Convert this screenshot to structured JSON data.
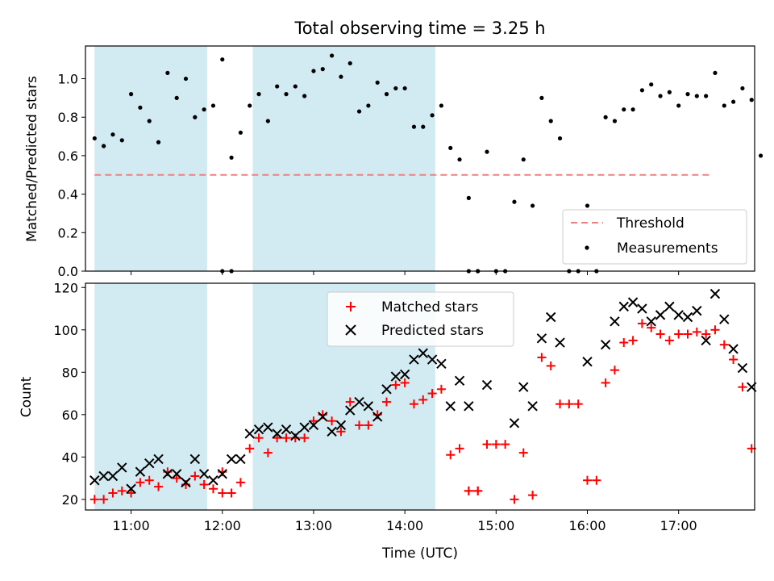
{
  "figure": {
    "title": "Total observing time = 3.25 h"
  },
  "chart_data": [
    {
      "type": "scatter",
      "panel": "top",
      "ylabel": "Matched/Predicted stars",
      "ylim": [
        0,
        1.17
      ],
      "yticks": [
        0.0,
        0.2,
        0.4,
        0.6,
        0.8,
        1.0
      ],
      "ytick_labels": [
        "0.0",
        "0.2",
        "0.4",
        "0.6",
        "0.8",
        "1.0"
      ],
      "xlim": [
        "10:30",
        "17:50"
      ],
      "grid": false,
      "legend_position": "lower-right",
      "shaded_intervals": [
        [
          "10:36",
          "11:50"
        ],
        [
          "12:20",
          "14:20"
        ]
      ],
      "shade_color": "#add8e6",
      "threshold": {
        "name": "Threshold",
        "value": 0.5,
        "x_range": [
          "10:36",
          "17:20"
        ],
        "color": "#f08080"
      },
      "series": [
        {
          "name": "Measurements",
          "color": "#000000",
          "points": [
            [
              "10:36",
              0.69
            ],
            [
              "10:42",
              0.65
            ],
            [
              "10:48",
              0.71
            ],
            [
              "10:54",
              0.68
            ],
            [
              "11:00",
              0.92
            ],
            [
              "11:06",
              0.85
            ],
            [
              "11:12",
              0.78
            ],
            [
              "11:18",
              0.67
            ],
            [
              "11:24",
              1.03
            ],
            [
              "11:30",
              0.9
            ],
            [
              "11:36",
              1.0
            ],
            [
              "11:42",
              0.8
            ],
            [
              "11:48",
              0.84
            ],
            [
              "11:54",
              0.86
            ],
            [
              "12:00",
              1.1
            ],
            [
              "12:06",
              0.59
            ],
            [
              "12:00",
              0.0
            ],
            [
              "12:06",
              0.0
            ],
            [
              "12:12",
              0.72
            ],
            [
              "12:18",
              0.86
            ],
            [
              "12:24",
              0.92
            ],
            [
              "12:30",
              0.78
            ],
            [
              "12:36",
              0.96
            ],
            [
              "12:42",
              0.92
            ],
            [
              "12:48",
              0.96
            ],
            [
              "12:54",
              0.91
            ],
            [
              "13:00",
              1.04
            ],
            [
              "13:06",
              1.05
            ],
            [
              "13:12",
              1.12
            ],
            [
              "13:18",
              1.01
            ],
            [
              "13:24",
              1.08
            ],
            [
              "13:30",
              0.83
            ],
            [
              "13:36",
              0.86
            ],
            [
              "13:42",
              0.98
            ],
            [
              "13:48",
              0.92
            ],
            [
              "13:54",
              0.95
            ],
            [
              "14:00",
              0.95
            ],
            [
              "14:06",
              0.75
            ],
            [
              "14:12",
              0.75
            ],
            [
              "14:18",
              0.81
            ],
            [
              "14:24",
              0.86
            ],
            [
              "14:30",
              0.64
            ],
            [
              "14:36",
              0.58
            ],
            [
              "14:42",
              0.38
            ],
            [
              "14:48",
              0.0
            ],
            [
              "14:42",
              0.0
            ],
            [
              "14:48",
              0.0
            ],
            [
              "14:54",
              0.62
            ],
            [
              "15:00",
              0.0
            ],
            [
              "15:06",
              0.0
            ],
            [
              "15:12",
              0.36
            ],
            [
              "15:18",
              0.58
            ],
            [
              "15:24",
              0.34
            ],
            [
              "15:30",
              0.9
            ],
            [
              "15:36",
              0.78
            ],
            [
              "15:42",
              0.69
            ],
            [
              "15:48",
              0.0
            ],
            [
              "15:54",
              0.0
            ],
            [
              "16:00",
              0.34
            ],
            [
              "16:06",
              0.0
            ],
            [
              "16:12",
              0.8
            ],
            [
              "16:18",
              0.78
            ],
            [
              "16:24",
              0.84
            ],
            [
              "16:30",
              0.84
            ],
            [
              "16:36",
              0.94
            ],
            [
              "16:42",
              0.97
            ],
            [
              "16:48",
              0.91
            ],
            [
              "16:54",
              0.93
            ],
            [
              "17:00",
              0.86
            ],
            [
              "17:06",
              0.92
            ],
            [
              "17:12",
              0.91
            ],
            [
              "17:18",
              0.91
            ],
            [
              "17:24",
              1.03
            ],
            [
              "17:30",
              0.86
            ],
            [
              "17:36",
              0.88
            ],
            [
              "17:42",
              0.95
            ],
            [
              "17:48",
              0.89
            ],
            [
              "17:54",
              0.6
            ]
          ]
        }
      ]
    },
    {
      "type": "scatter",
      "panel": "bottom",
      "xlabel": "Time (UTC)",
      "ylabel": "Count",
      "ylim": [
        15,
        122
      ],
      "yticks": [
        20,
        40,
        60,
        80,
        100,
        120
      ],
      "ytick_labels": [
        "20",
        "40",
        "60",
        "80",
        "100",
        "120"
      ],
      "xlim": [
        "10:30",
        "17:50"
      ],
      "xticks": [
        "11:00",
        "12:00",
        "13:00",
        "14:00",
        "15:00",
        "16:00",
        "17:00"
      ],
      "xtick_labels": [
        "11:00",
        "12:00",
        "13:00",
        "14:00",
        "15:00",
        "16:00",
        "17:00"
      ],
      "grid": false,
      "legend_position": "top-center",
      "shaded_intervals": [
        [
          "10:36",
          "11:50"
        ],
        [
          "12:20",
          "14:20"
        ]
      ],
      "series": [
        {
          "name": "Matched stars",
          "marker": "plus",
          "color": "#ff0000",
          "points": [
            [
              "10:36",
              20
            ],
            [
              "10:42",
              20
            ],
            [
              "10:48",
              23
            ],
            [
              "10:54",
              24
            ],
            [
              "11:00",
              23
            ],
            [
              "11:06",
              28
            ],
            [
              "11:12",
              29
            ],
            [
              "11:18",
              26
            ],
            [
              "11:24",
              33
            ],
            [
              "11:30",
              30
            ],
            [
              "11:36",
              27
            ],
            [
              "11:42",
              31
            ],
            [
              "11:48",
              27
            ],
            [
              "11:54",
              25
            ],
            [
              "12:00",
              33
            ],
            [
              "12:06",
              23
            ],
            [
              "12:00",
              23
            ],
            [
              "12:06",
              23
            ],
            [
              "12:12",
              28
            ],
            [
              "12:18",
              44
            ],
            [
              "12:24",
              49
            ],
            [
              "12:30",
              42
            ],
            [
              "12:36",
              49
            ],
            [
              "12:42",
              49
            ],
            [
              "12:48",
              49
            ],
            [
              "12:54",
              49
            ],
            [
              "13:00",
              57
            ],
            [
              "13:06",
              60
            ],
            [
              "13:12",
              57
            ],
            [
              "13:18",
              52
            ],
            [
              "13:24",
              66
            ],
            [
              "13:30",
              55
            ],
            [
              "13:36",
              55
            ],
            [
              "13:42",
              60
            ],
            [
              "13:48",
              66
            ],
            [
              "13:54",
              74
            ],
            [
              "14:00",
              75
            ],
            [
              "14:06",
              65
            ],
            [
              "14:12",
              67
            ],
            [
              "14:18",
              70
            ],
            [
              "14:24",
              72
            ],
            [
              "14:30",
              41
            ],
            [
              "14:36",
              44
            ],
            [
              "14:42",
              24
            ],
            [
              "14:48",
              24
            ],
            [
              "14:42",
              24
            ],
            [
              "14:48",
              24
            ],
            [
              "14:54",
              46
            ],
            [
              "15:00",
              46
            ],
            [
              "15:06",
              46
            ],
            [
              "15:12",
              20
            ],
            [
              "15:18",
              42
            ],
            [
              "15:24",
              22
            ],
            [
              "15:30",
              87
            ],
            [
              "15:36",
              83
            ],
            [
              "15:42",
              65
            ],
            [
              "15:48",
              65
            ],
            [
              "15:54",
              65
            ],
            [
              "16:00",
              29
            ],
            [
              "16:06",
              29
            ],
            [
              "16:12",
              75
            ],
            [
              "16:18",
              81
            ],
            [
              "16:24",
              94
            ],
            [
              "16:30",
              95
            ],
            [
              "16:36",
              103
            ],
            [
              "16:42",
              101
            ],
            [
              "16:48",
              98
            ],
            [
              "16:54",
              95
            ],
            [
              "17:00",
              98
            ],
            [
              "17:06",
              98
            ],
            [
              "17:12",
              99
            ],
            [
              "17:18",
              98
            ],
            [
              "17:24",
              100
            ],
            [
              "17:30",
              93
            ],
            [
              "17:36",
              86
            ],
            [
              "17:42",
              73
            ],
            [
              "17:48",
              44
            ]
          ]
        },
        {
          "name": "Predicted stars",
          "marker": "x",
          "color": "#000000",
          "points": [
            [
              "10:36",
              29
            ],
            [
              "10:42",
              31
            ],
            [
              "10:48",
              31
            ],
            [
              "10:54",
              35
            ],
            [
              "11:00",
              25
            ],
            [
              "11:06",
              33
            ],
            [
              "11:12",
              37
            ],
            [
              "11:18",
              39
            ],
            [
              "11:24",
              32
            ],
            [
              "11:30",
              32
            ],
            [
              "11:36",
              28
            ],
            [
              "11:42",
              39
            ],
            [
              "11:48",
              32
            ],
            [
              "11:54",
              29
            ],
            [
              "12:00",
              32
            ],
            [
              "12:06",
              39
            ],
            [
              "12:12",
              39
            ],
            [
              "12:18",
              51
            ],
            [
              "12:24",
              53
            ],
            [
              "12:30",
              54
            ],
            [
              "12:36",
              51
            ],
            [
              "12:42",
              53
            ],
            [
              "12:48",
              50
            ],
            [
              "12:54",
              54
            ],
            [
              "13:00",
              55
            ],
            [
              "13:06",
              59
            ],
            [
              "13:12",
              52
            ],
            [
              "13:18",
              55
            ],
            [
              "13:24",
              62
            ],
            [
              "13:30",
              66
            ],
            [
              "13:36",
              64
            ],
            [
              "13:42",
              59
            ],
            [
              "13:48",
              72
            ],
            [
              "13:54",
              78
            ],
            [
              "14:00",
              79
            ],
            [
              "14:06",
              86
            ],
            [
              "14:12",
              89
            ],
            [
              "14:18",
              86
            ],
            [
              "14:24",
              84
            ],
            [
              "14:30",
              64
            ],
            [
              "14:36",
              76
            ],
            [
              "14:42",
              64
            ],
            [
              "14:54",
              74
            ],
            [
              "15:12",
              56
            ],
            [
              "15:18",
              73
            ],
            [
              "15:24",
              64
            ],
            [
              "15:30",
              96
            ],
            [
              "15:36",
              106
            ],
            [
              "15:42",
              94
            ],
            [
              "16:00",
              85
            ],
            [
              "16:12",
              93
            ],
            [
              "16:18",
              104
            ],
            [
              "16:24",
              111
            ],
            [
              "16:30",
              113
            ],
            [
              "16:36",
              110
            ],
            [
              "16:42",
              104
            ],
            [
              "16:48",
              107
            ],
            [
              "16:54",
              111
            ],
            [
              "17:00",
              107
            ],
            [
              "17:06",
              106
            ],
            [
              "17:12",
              109
            ],
            [
              "17:18",
              95
            ],
            [
              "17:24",
              117
            ],
            [
              "17:30",
              105
            ],
            [
              "17:36",
              91
            ],
            [
              "17:42",
              82
            ],
            [
              "17:48",
              73
            ]
          ]
        }
      ]
    }
  ]
}
